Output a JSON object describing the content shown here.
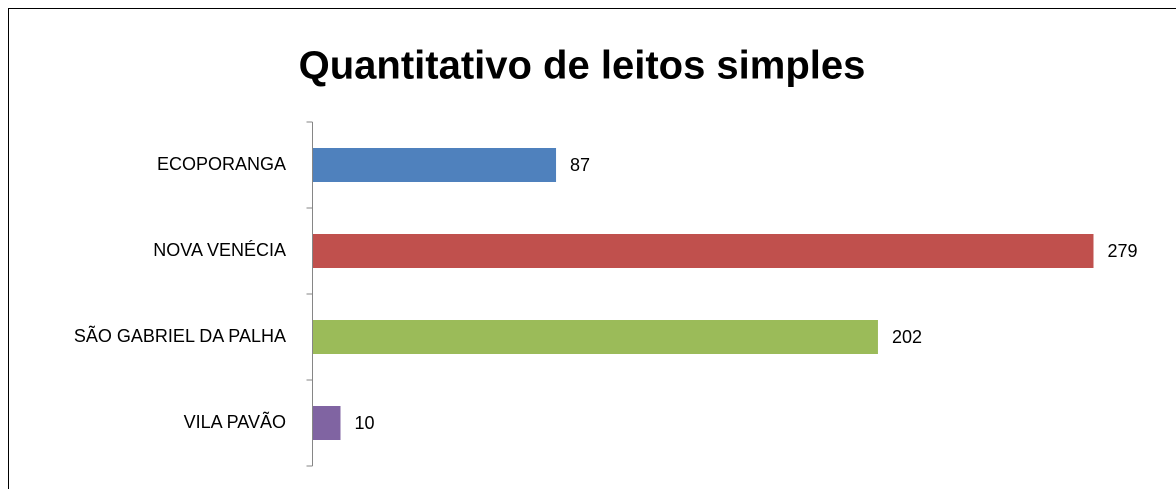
{
  "chart_data": {
    "type": "bar",
    "orientation": "horizontal",
    "title": "Quantitativo de leitos simples",
    "categories": [
      "ECOPORANGA",
      "NOVA VENÉCIA",
      "SÃO GABRIEL DA PALHA",
      "VILA PAVÃO"
    ],
    "values": [
      87,
      279,
      202,
      10
    ],
    "colors": [
      "#4f81bd",
      "#c0504d",
      "#9bbb59",
      "#8064a2"
    ]
  }
}
